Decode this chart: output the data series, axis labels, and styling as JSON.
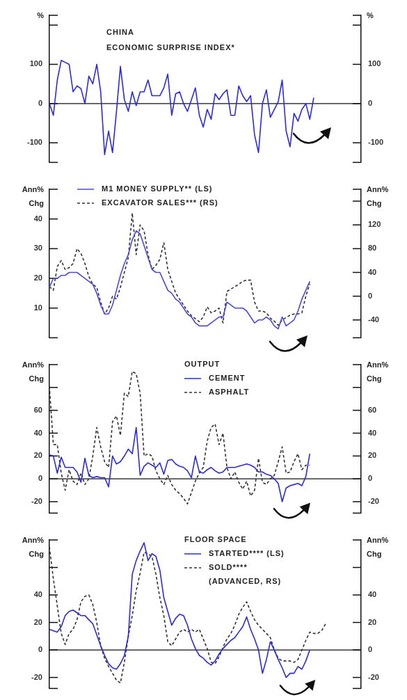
{
  "chart_data": [
    {
      "type": "line",
      "title": "CHINA",
      "subtitle": "ECONOMIC SURPRISE INDEX*",
      "ylabel": "%",
      "y2label": "%",
      "categories": [
        null,
        null,
        null,
        null,
        null,
        null,
        null,
        null,
        null,
        null,
        null,
        null,
        null,
        null,
        null,
        null,
        null,
        null,
        null,
        null,
        null,
        null,
        null,
        null,
        null,
        null,
        null,
        null,
        null,
        null,
        null,
        null,
        null,
        null,
        null,
        null,
        null,
        null,
        null,
        null,
        null,
        null,
        null,
        null,
        null,
        null,
        null,
        null,
        null,
        null,
        null,
        null,
        null,
        null,
        null,
        null,
        null,
        null,
        null,
        null,
        null,
        null,
        null,
        null,
        null,
        null,
        null,
        null,
        null,
        null,
        null,
        null,
        null,
        null,
        null,
        null,
        null,
        null,
        null,
        null
      ],
      "series": [
        {
          "color": "#2a2ae0",
          "values": [
            0,
            -30,
            60,
            110,
            105,
            100,
            30,
            45,
            38,
            0,
            70,
            50,
            100,
            30,
            -130,
            -70,
            -125,
            -20,
            95,
            10,
            -20,
            30,
            -5,
            30,
            30,
            60,
            20,
            20,
            20,
            40,
            75,
            -30,
            25,
            30,
            0,
            -20,
            10,
            40,
            -30,
            -60,
            -15,
            -40,
            25,
            10,
            25,
            35,
            -30,
            -30,
            45,
            20,
            5,
            20,
            -80,
            -125,
            0,
            35,
            -35,
            -15,
            5,
            60,
            -70,
            -110,
            -25,
            -45,
            -15,
            0,
            -40,
            15,
            null,
            null,
            null,
            null,
            null,
            null,
            null,
            null,
            null,
            null,
            null,
            null
          ]
        }
      ],
      "ylim": [
        -150,
        225
      ],
      "yticks": [
        -100,
        0,
        100,
        {
          "value": 200,
          "label": null
        }
      ],
      "y2lim": [
        -150,
        225
      ],
      "y2ticks": [
        -100,
        0,
        100,
        {
          "value": 200,
          "label": null
        }
      ],
      "ref_lines": [
        {
          "axis": "y",
          "value": 0
        }
      ],
      "tick_labels": "y"
    },
    {
      "type": "line",
      "ylabel": "Ann% Chg",
      "y2label": "Ann% Chg",
      "legend": "top left",
      "categories": [
        null,
        null,
        null,
        null,
        null,
        null,
        null,
        null,
        null,
        null,
        null,
        null,
        null,
        null,
        null,
        null,
        null,
        null,
        null,
        null,
        null,
        null,
        null,
        null,
        null,
        null,
        null,
        null,
        null,
        null,
        null,
        null,
        null,
        null,
        null,
        null,
        null,
        null,
        null,
        null,
        null,
        null,
        null,
        null,
        null,
        null,
        null,
        null,
        null,
        null,
        null,
        null,
        null,
        null,
        null,
        null,
        null,
        null,
        null,
        null,
        null,
        null,
        null,
        null,
        null,
        null,
        null,
        null,
        null,
        null,
        null,
        null,
        null,
        null,
        null,
        null,
        null,
        null,
        null,
        null
      ],
      "series": [
        {
          "name": "M1 MONEY SUPPLY** (LS)",
          "color": "#4a4ae0",
          "line_style": "solid",
          "values": [
            17,
            20,
            20,
            21,
            21,
            22,
            22,
            22,
            21,
            20,
            19,
            18,
            15,
            11,
            8,
            8,
            11,
            16,
            21,
            25,
            28,
            33,
            36,
            35,
            31,
            27,
            23,
            22,
            22,
            19,
            16,
            15,
            13,
            12,
            10,
            8,
            7,
            5,
            4,
            4,
            4,
            5,
            6,
            7,
            7,
            12,
            11,
            10,
            10,
            10,
            9,
            7,
            5,
            6,
            6,
            7,
            6,
            4,
            3,
            7,
            4,
            5,
            6,
            9,
            13,
            16,
            19,
            null,
            null,
            null,
            null,
            null,
            null,
            null,
            null,
            null,
            null,
            null,
            null,
            null
          ]
        },
        {
          "name": "EXCAVATOR SALES*** (RS)",
          "color": "#333333",
          "line_style": "dashed",
          "axis": "y2",
          "values": [
            16,
            10,
            50,
            60,
            45,
            48,
            55,
            80,
            72,
            55,
            33,
            20,
            15,
            -10,
            -30,
            -20,
            0,
            -5,
            15,
            40,
            65,
            140,
            70,
            120,
            110,
            70,
            45,
            52,
            62,
            90,
            45,
            25,
            5,
            -5,
            -15,
            -25,
            -33,
            -38,
            -43,
            -35,
            -18,
            -28,
            -25,
            -20,
            -45,
            8,
            12,
            16,
            20,
            25,
            27,
            27,
            -10,
            -25,
            -25,
            -28,
            -37,
            -42,
            -49,
            -40,
            -36,
            -32,
            -30,
            -30,
            -28,
            0,
            21,
            null,
            null,
            null,
            null,
            null,
            null,
            null,
            null,
            null,
            null,
            null,
            null,
            null
          ]
        }
      ],
      "ylim": [
        0,
        50
      ],
      "yticks": [
        10,
        20,
        30,
        40
      ],
      "y2lim": [
        -70,
        180
      ],
      "y2ticks": [
        -40,
        0,
        40,
        80,
        120,
        {
          "value": 160,
          "label": null
        }
      ],
      "tick_labels": "y"
    },
    {
      "type": "line",
      "ylabel": "Ann% Chg",
      "y2label": "Ann% Chg",
      "legend": "top",
      "legend_title": "OUTPUT",
      "categories": [
        null,
        null,
        null,
        null,
        null,
        null,
        null,
        null,
        null,
        null,
        null,
        null,
        null,
        null,
        null,
        null,
        null,
        null,
        null,
        null,
        null,
        null,
        null,
        null,
        null,
        null,
        null,
        null,
        null,
        null,
        null,
        null,
        null,
        null,
        null,
        null,
        null,
        null,
        null,
        null,
        null,
        null,
        null,
        null,
        null,
        null,
        null,
        null,
        null,
        null,
        null,
        null,
        null,
        null,
        null,
        null,
        null,
        null,
        null,
        null,
        null,
        null,
        null,
        null,
        null,
        null,
        null,
        null,
        null,
        null,
        null,
        null,
        null,
        null,
        null,
        null,
        null,
        null,
        null,
        null
      ],
      "series": [
        {
          "name": "CEMENT",
          "color": "#2a2ae0",
          "line_style": "solid",
          "values": [
            21,
            20,
            5,
            19,
            10,
            10,
            10,
            6,
            -3,
            18,
            3,
            1,
            2,
            1,
            1,
            -7,
            20,
            13,
            15,
            20,
            26,
            22,
            45,
            3,
            11,
            14,
            12,
            10,
            14,
            4,
            16,
            17,
            13,
            11,
            10,
            7,
            1,
            20,
            6,
            5,
            8,
            10,
            7,
            5,
            6,
            10,
            10,
            10,
            11,
            12,
            13,
            12,
            10,
            6,
            6,
            4,
            3,
            0,
            -4,
            -20,
            -8,
            -6,
            -5,
            -4,
            -6,
            2,
            22,
            null,
            null,
            null,
            null,
            null,
            null,
            null,
            null,
            null,
            null,
            null,
            null,
            null
          ]
        },
        {
          "name": "ASPHALT",
          "color": "#333333",
          "line_style": "dashed",
          "values": [
            81,
            30,
            30,
            5,
            -10,
            8,
            -2,
            -5,
            5,
            -5,
            0,
            20,
            45,
            28,
            15,
            10,
            50,
            55,
            38,
            75,
            72,
            94,
            92,
            75,
            20,
            22,
            20,
            7,
            0,
            -5,
            3,
            -5,
            -10,
            -13,
            -17,
            -22,
            -12,
            -2,
            5,
            10,
            33,
            45,
            48,
            30,
            40,
            10,
            0,
            6,
            -3,
            -9,
            -2,
            -15,
            -10,
            18,
            -3,
            -5,
            0,
            3,
            15,
            28,
            5,
            6,
            15,
            22,
            8,
            12,
            12,
            null,
            null,
            null,
            null,
            null,
            null,
            null,
            null,
            null,
            null,
            null,
            null,
            null
          ]
        }
      ],
      "ylim": [
        -30,
        100
      ],
      "yticks": [
        -20,
        0,
        20,
        40,
        60,
        {
          "value": 80,
          "label": null
        }
      ],
      "y2lim": [
        -30,
        100
      ],
      "y2ticks": [
        -20,
        0,
        20,
        40,
        60,
        {
          "value": 80,
          "label": null
        }
      ],
      "ref_lines": [
        {
          "axis": "y",
          "value": 0
        }
      ],
      "tick_labels": "y"
    },
    {
      "type": "line",
      "ylabel": "Ann% Chg",
      "y2label": "Ann% Chg",
      "legend": "top",
      "legend_title": "FLOOR SPACE",
      "categories": [
        null,
        null,
        null,
        null,
        null,
        null,
        null,
        null,
        null,
        null,
        null,
        null,
        null,
        null,
        null,
        null,
        null,
        null,
        null,
        null,
        null,
        null,
        null,
        null,
        null,
        null,
        null,
        null,
        null,
        null,
        null,
        null,
        null,
        null,
        null,
        null,
        null,
        null,
        null,
        null,
        null,
        null,
        null,
        null,
        null,
        null,
        null,
        null,
        null,
        null,
        null,
        null,
        null,
        null,
        null,
        null,
        null,
        null,
        null,
        null,
        null,
        null,
        null,
        null,
        null,
        null,
        null,
        null,
        null,
        null,
        null,
        null,
        null,
        null,
        null,
        null,
        null,
        null,
        null,
        null
      ],
      "series": [
        {
          "name": "STARTED**** (LS)",
          "color": "#2a2ae0",
          "line_style": "solid",
          "values": [
            15,
            14,
            13,
            17,
            25,
            28,
            29,
            27,
            25,
            25,
            22,
            19,
            11,
            3,
            -4,
            -10,
            -13,
            -14,
            -10,
            -4,
            10,
            55,
            65,
            72,
            78,
            65,
            70,
            68,
            58,
            38,
            28,
            18,
            23,
            26,
            25,
            18,
            8,
            1,
            -4,
            -6,
            -9,
            -11,
            -8,
            -3,
            1,
            4,
            7,
            9,
            13,
            17,
            24,
            15,
            8,
            0,
            -17,
            -7,
            6,
            0,
            -7,
            -13,
            -20,
            -17,
            -17,
            -12,
            -14,
            -8,
            0,
            null,
            null,
            null,
            null,
            null,
            null,
            null,
            null,
            null,
            null,
            null,
            null,
            null
          ]
        },
        {
          "name": "SOLD**** (ADVANCED, RS)",
          "color": "#333333",
          "line_style": "dashed",
          "axis": "y2",
          "values": [
            75,
            52,
            32,
            12,
            4,
            12,
            15,
            22,
            35,
            39,
            40,
            33,
            20,
            3,
            -6,
            -12,
            -17,
            -22,
            -24,
            -9,
            10,
            25,
            43,
            56,
            71,
            70,
            68,
            55,
            38,
            25,
            6,
            3,
            8,
            13,
            15,
            13,
            15,
            13,
            15,
            8,
            1,
            -9,
            -10,
            -5,
            2,
            8,
            12,
            18,
            26,
            31,
            35,
            28,
            22,
            18,
            15,
            12,
            9,
            0,
            -6,
            -8,
            -8,
            -8,
            -9,
            -7,
            0,
            7,
            13,
            12,
            12,
            14,
            19,
            null,
            null,
            null,
            null,
            null,
            null,
            null,
            null,
            null
          ]
        }
      ],
      "ylim": [
        -28,
        80
      ],
      "yticks": [
        -20,
        0,
        20,
        40,
        {
          "value": 60,
          "label": null
        }
      ],
      "y2lim": [
        -28,
        80
      ],
      "y2ticks": [
        -20,
        0,
        20,
        40,
        {
          "value": 60,
          "label": null
        }
      ],
      "ref_lines": [
        {
          "axis": "y",
          "value": 0
        }
      ],
      "tick_labels": "y"
    }
  ]
}
